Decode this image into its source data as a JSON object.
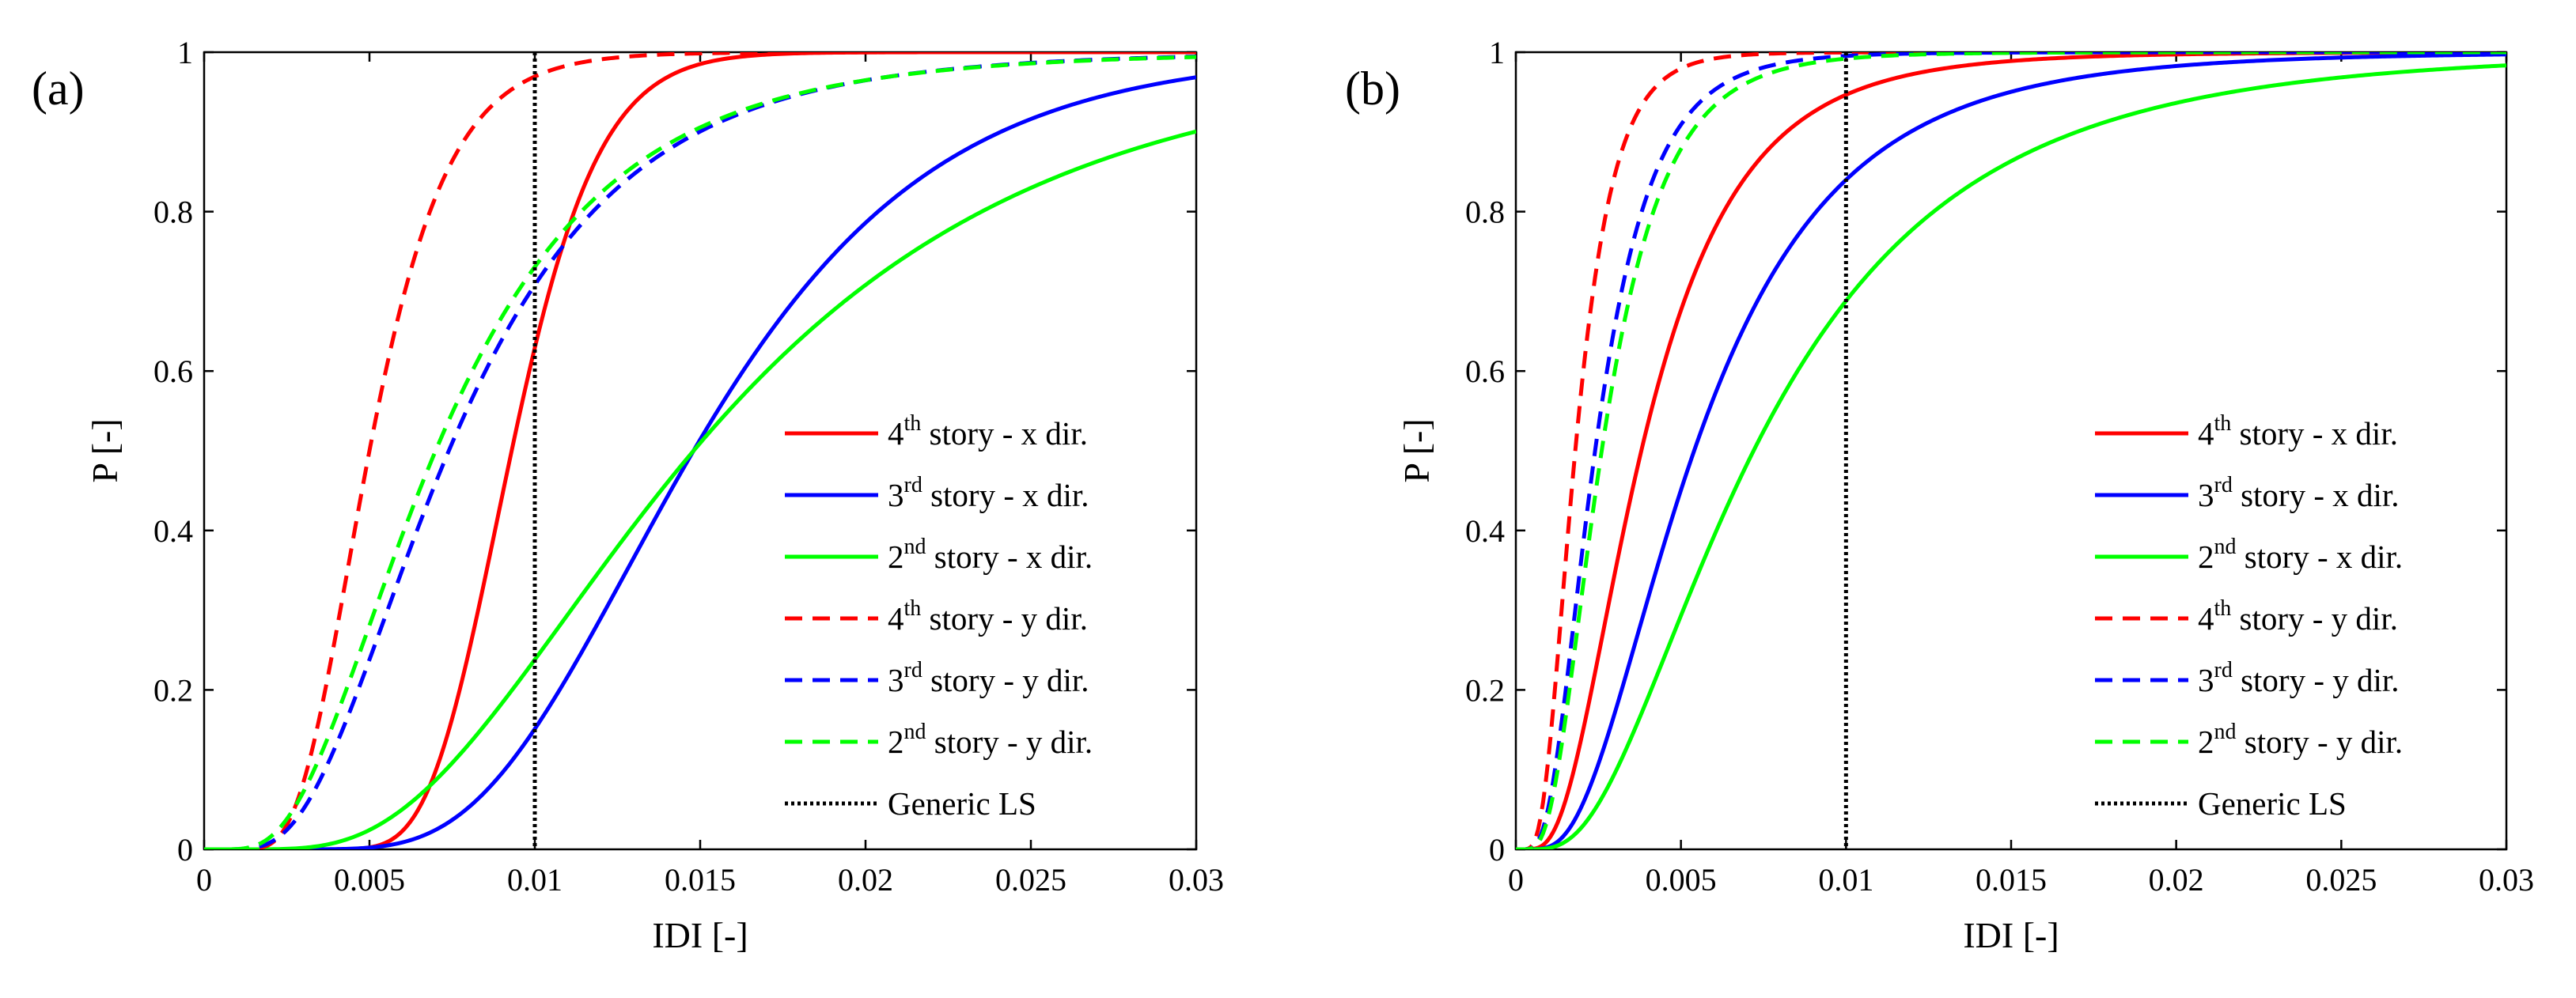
{
  "chart_data": [
    {
      "type": "line",
      "panel_label": "(a)",
      "xlabel": "IDI [-]",
      "ylabel": "P [-]",
      "xlim": [
        0,
        0.03
      ],
      "ylim": [
        0,
        1
      ],
      "xticks": [
        "0",
        "0.005",
        "0.01",
        "0.015",
        "0.02",
        "0.025",
        "0.03"
      ],
      "yticks": [
        "0",
        "0.2",
        "0.4",
        "0.6",
        "0.8",
        "1"
      ],
      "legend_position": "lower-right",
      "series": [
        {
          "name": "4th story - x dir.",
          "ordinal": "4",
          "sup": "th",
          "rest": " story - x dir.",
          "color": "#ff0000",
          "style": "solid",
          "median": 0.0093,
          "beta": 0.22,
          "p_at_0.01": 0.6
        },
        {
          "name": "3rd story - x dir.",
          "ordinal": "3",
          "sup": "rd",
          "rest": " story - x dir.",
          "color": "#0000ff",
          "style": "solid",
          "median": 0.0148,
          "beta": 0.38,
          "p_at_0.01": 0.16
        },
        {
          "name": "2nd story - x dir.",
          "ordinal": "2",
          "sup": "nd",
          "rest": " story - x dir.",
          "color": "#00ff00",
          "style": "solid",
          "median": 0.0148,
          "beta": 0.55,
          "p_at_0.01": 0.22
        },
        {
          "name": "4th story - y dir.",
          "ordinal": "4",
          "sup": "th",
          "rest": " story - y dir.",
          "color": "#ff0000",
          "style": "dashed",
          "median": 0.005,
          "beta": 0.37,
          "p_at_0.01": 0.97
        },
        {
          "name": "3rd story - y dir.",
          "ordinal": "3",
          "sup": "rd",
          "rest": " story - y dir.",
          "color": "#0000ff",
          "style": "dashed",
          "median": 0.0074,
          "beta": 0.55,
          "p_at_0.01": 0.7
        },
        {
          "name": "2nd story - y dir.",
          "ordinal": "2",
          "sup": "nd",
          "rest": " story - y dir.",
          "color": "#00ff00",
          "style": "dashed",
          "median": 0.007,
          "beta": 0.58,
          "p_at_0.01": 0.73
        }
      ],
      "reference_line": {
        "name": "Generic LS",
        "x": 0.01,
        "color": "#000000",
        "style": "dotted"
      }
    },
    {
      "type": "line",
      "panel_label": "(b)",
      "xlabel": "IDI [-]",
      "ylabel": "P [-]",
      "xlim": [
        0,
        0.03
      ],
      "ylim": [
        0,
        1
      ],
      "xticks": [
        "0",
        "0.005",
        "0.01",
        "0.015",
        "0.02",
        "0.025",
        "0.03"
      ],
      "yticks": [
        "0",
        "0.2",
        "0.4",
        "0.6",
        "0.8",
        "1"
      ],
      "legend_position": "lower-right",
      "series": [
        {
          "name": "4th story - x dir.",
          "ordinal": "4",
          "sup": "th",
          "rest": " story - x dir.",
          "color": "#ff0000",
          "style": "solid",
          "median": 0.0038,
          "beta": 0.6,
          "p_at_0.01": 0.94
        },
        {
          "name": "3rd story - x dir.",
          "ordinal": "3",
          "sup": "rd",
          "rest": " story - x dir.",
          "color": "#0000ff",
          "style": "solid",
          "median": 0.0054,
          "beta": 0.62,
          "p_at_0.01": 0.84
        },
        {
          "name": "2nd story - x dir.",
          "ordinal": "2",
          "sup": "nd",
          "rest": " story - x dir.",
          "color": "#00ff00",
          "style": "solid",
          "median": 0.0072,
          "beta": 0.67,
          "p_at_0.01": 0.68
        },
        {
          "name": "4th story - y dir.",
          "ordinal": "4",
          "sup": "th",
          "rest": " story - y dir.",
          "color": "#ff0000",
          "style": "dashed",
          "median": 0.0018,
          "beta": 0.5,
          "p_at_0.01": 1.0
        },
        {
          "name": "3rd story - y dir.",
          "ordinal": "3",
          "sup": "rd",
          "rest": " story - y dir.",
          "color": "#0000ff",
          "style": "dashed",
          "median": 0.0024,
          "beta": 0.55,
          "p_at_0.01": 0.995
        },
        {
          "name": "2nd story - y dir.",
          "ordinal": "2",
          "sup": "nd",
          "rest": " story - y dir.",
          "color": "#00ff00",
          "style": "dashed",
          "median": 0.0026,
          "beta": 0.56,
          "p_at_0.01": 0.99
        }
      ],
      "reference_line": {
        "name": "Generic LS",
        "x": 0.01,
        "color": "#000000",
        "style": "dotted"
      }
    }
  ]
}
